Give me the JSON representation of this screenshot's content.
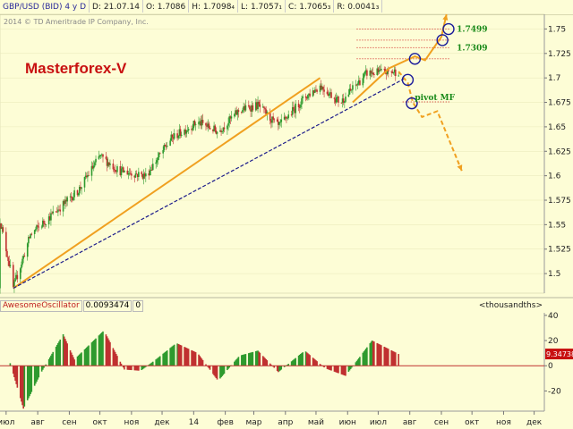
{
  "header": {
    "symbol": "GBP/USD (BID) 4 y D",
    "date": "D: 21.07.14",
    "open": "O: 1.7086",
    "high": "H: 1.7098₄",
    "low": "L: 1.7057₁",
    "close": "C: 1.7065₃",
    "range": "R: 0.0041₃"
  },
  "copyright": "2014 © TD Ameritrade IP Company, Inc.",
  "watermark": "Masterforex-V",
  "oscillator": {
    "name": "AwesomeOscillator",
    "value": "0.0093474",
    "param": "0",
    "unit_label": "<thousandths>",
    "last_value_label": "9.34738"
  },
  "annotations": {
    "level_1": "1.7499",
    "level_2": "1.7309",
    "pivot": "pivot MF"
  },
  "colors": {
    "background": "#fdfdd6",
    "bull_candle": "#2e9a2e",
    "bear_candle": "#c03030",
    "trendline": "#f0a020",
    "support_line": "#1a1a8a",
    "levels": "#d02020",
    "annotation_text": "#1a8a1a",
    "circles": "#1a1a9a"
  },
  "chart_data": [
    {
      "type": "candlestick",
      "title": "",
      "x_ticks": [
        "июл",
        "авг",
        "сен",
        "окт",
        "ноя",
        "дек",
        "14",
        "фев",
        "мар",
        "апр",
        "май",
        "июн",
        "июл",
        "авг",
        "сен",
        "окт",
        "ноя",
        "дек"
      ],
      "y_ticks": [
        1.5,
        1.525,
        1.55,
        1.575,
        1.6,
        1.625,
        1.65,
        1.675,
        1.7,
        1.725,
        1.75
      ],
      "y_tick_labels": [
        "1.5",
        "1.525",
        "1.55",
        "1.575",
        "1.6",
        "1.625",
        "1.65",
        "1.675",
        "1.7",
        "1.725",
        "1.75"
      ],
      "ylim": [
        1.48,
        1.765
      ],
      "key_points": [
        {
          "x": "2013-07-08",
          "close": 1.485
        },
        {
          "x": "2013-07-25",
          "close": 1.54
        },
        {
          "x": "2013-09-10",
          "close": 1.585
        },
        {
          "x": "2013-10-01",
          "close": 1.62
        },
        {
          "x": "2013-10-20",
          "close": 1.605
        },
        {
          "x": "2013-11-15",
          "close": 1.6
        },
        {
          "x": "2013-12-10",
          "close": 1.638
        },
        {
          "x": "2014-01-05",
          "close": 1.655
        },
        {
          "x": "2014-01-25",
          "close": 1.645
        },
        {
          "x": "2014-02-15",
          "close": 1.667
        },
        {
          "x": "2014-03-05",
          "close": 1.672
        },
        {
          "x": "2014-03-25",
          "close": 1.65
        },
        {
          "x": "2014-04-20",
          "close": 1.68
        },
        {
          "x": "2014-05-05",
          "close": 1.692
        },
        {
          "x": "2014-05-25",
          "close": 1.675
        },
        {
          "x": "2014-06-20",
          "close": 1.705
        },
        {
          "x": "2014-07-21",
          "close": 1.7065
        }
      ],
      "levels": [
        1.7499,
        1.7386,
        1.7309,
        1.7195,
        1.6755
      ],
      "trendline": {
        "from": {
          "x": "2013-07-08",
          "y": 1.485
        },
        "to": {
          "x": "2014-05-05",
          "y": 1.7
        }
      },
      "support": {
        "from": {
          "x": "2013-07-08",
          "y": 1.485
        },
        "to": {
          "x": "2014-07-28",
          "y": 1.7
        }
      },
      "forecast": [
        {
          "x": "2014-06-06",
          "y": 1.675
        },
        {
          "x": "2014-07-12",
          "y": 1.71
        },
        {
          "x": "2014-08-06",
          "y": 1.722
        },
        {
          "x": "2014-08-16",
          "y": 1.718
        },
        {
          "x": "2014-09-01",
          "y": 1.742
        },
        {
          "x": "2014-09-06",
          "y": 1.765
        }
      ],
      "forecast_down": [
        {
          "x": "2014-07-21",
          "y": 1.7065
        },
        {
          "x": "2014-07-30",
          "y": 1.695
        },
        {
          "x": "2014-08-04",
          "y": 1.675
        },
        {
          "x": "2014-08-13",
          "y": 1.66
        },
        {
          "x": "2014-08-28",
          "y": 1.666
        },
        {
          "x": "2014-09-21",
          "y": 1.605
        }
      ],
      "circles": [
        {
          "x": "2014-09-08",
          "y": 1.7499
        },
        {
          "x": "2014-09-02",
          "y": 1.7386
        },
        {
          "x": "2014-08-06",
          "y": 1.7195
        },
        {
          "x": "2014-07-30",
          "y": 1.698
        },
        {
          "x": "2014-08-03",
          "y": 1.674
        }
      ]
    },
    {
      "type": "bar",
      "title": "AwesomeOscillator",
      "y_ticks": [
        40,
        20,
        0,
        -20
      ],
      "y_tick_labels": [
        "40",
        "20",
        "0",
        "-20"
      ],
      "ylim": [
        -36,
        42
      ],
      "key_points": [
        {
          "x": "2013-07-05",
          "value": 2
        },
        {
          "x": "2013-07-18",
          "value": -34
        },
        {
          "x": "2013-08-04",
          "value": -6
        },
        {
          "x": "2013-08-26",
          "value": 25
        },
        {
          "x": "2013-09-06",
          "value": 5
        },
        {
          "x": "2013-10-05",
          "value": 28
        },
        {
          "x": "2013-10-25",
          "value": -3
        },
        {
          "x": "2013-11-10",
          "value": -4
        },
        {
          "x": "2013-11-25",
          "value": 5
        },
        {
          "x": "2013-12-15",
          "value": 18
        },
        {
          "x": "2014-01-05",
          "value": 10
        },
        {
          "x": "2014-01-25",
          "value": -12
        },
        {
          "x": "2014-02-15",
          "value": 8
        },
        {
          "x": "2014-03-05",
          "value": 12
        },
        {
          "x": "2014-03-25",
          "value": -5
        },
        {
          "x": "2014-04-20",
          "value": 12
        },
        {
          "x": "2014-05-10",
          "value": -2
        },
        {
          "x": "2014-05-30",
          "value": -8
        },
        {
          "x": "2014-06-25",
          "value": 20
        },
        {
          "x": "2014-07-21",
          "value": 9.34738
        }
      ]
    }
  ]
}
